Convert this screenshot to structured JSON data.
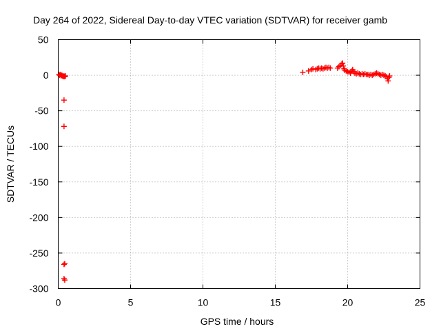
{
  "chart_data": {
    "type": "scatter",
    "title": "Day 264 of 2022, Sidereal Day-to-day VTEC variation (SDTVAR) for receiver gamb",
    "xlabel": "GPS time / hours",
    "ylabel": "SDTVAR / TECUs",
    "xlim": [
      0,
      25
    ],
    "ylim": [
      -300,
      50
    ],
    "x_ticks": [
      0,
      5,
      10,
      15,
      20,
      25
    ],
    "x_tick_labels": [
      "0",
      "5",
      "10",
      "15",
      "20",
      "25"
    ],
    "y_ticks": [
      50,
      0,
      -50,
      -100,
      -150,
      -200,
      -250,
      -300
    ],
    "y_tick_labels": [
      "50",
      "0",
      "-50",
      "-100",
      "-150",
      "-200",
      "-250",
      "-300"
    ],
    "grid": true,
    "marker": "plus",
    "color": "#ff0000",
    "series": [
      {
        "name": "SDTVAR",
        "points": [
          [
            0.05,
            1
          ],
          [
            0.1,
            0
          ],
          [
            0.15,
            1
          ],
          [
            0.2,
            -1
          ],
          [
            0.25,
            0
          ],
          [
            0.3,
            -1
          ],
          [
            0.35,
            -2
          ],
          [
            0.4,
            -1
          ],
          [
            0.45,
            -2
          ],
          [
            0.5,
            -1
          ],
          [
            0.4,
            -35
          ],
          [
            0.4,
            -72
          ],
          [
            0.4,
            -266
          ],
          [
            0.45,
            -265
          ],
          [
            0.4,
            -286
          ],
          [
            0.45,
            -288
          ],
          [
            16.9,
            4
          ],
          [
            17.3,
            6
          ],
          [
            17.5,
            8
          ],
          [
            17.6,
            9
          ],
          [
            17.8,
            8
          ],
          [
            17.9,
            9
          ],
          [
            18.0,
            10
          ],
          [
            18.1,
            9
          ],
          [
            18.2,
            10
          ],
          [
            18.3,
            9
          ],
          [
            18.4,
            10
          ],
          [
            18.5,
            11
          ],
          [
            18.6,
            10
          ],
          [
            18.7,
            11
          ],
          [
            18.8,
            10
          ],
          [
            19.3,
            10
          ],
          [
            19.4,
            12
          ],
          [
            19.5,
            14
          ],
          [
            19.6,
            16
          ],
          [
            19.65,
            17
          ],
          [
            19.7,
            13
          ],
          [
            19.75,
            9
          ],
          [
            19.8,
            7
          ],
          [
            19.9,
            6
          ],
          [
            20.0,
            5
          ],
          [
            20.1,
            4
          ],
          [
            20.2,
            3
          ],
          [
            20.3,
            6
          ],
          [
            20.35,
            8
          ],
          [
            20.4,
            5
          ],
          [
            20.5,
            3
          ],
          [
            20.6,
            2
          ],
          [
            20.7,
            3
          ],
          [
            20.8,
            2
          ],
          [
            20.9,
            1
          ],
          [
            21.0,
            2
          ],
          [
            21.1,
            1
          ],
          [
            21.2,
            2
          ],
          [
            21.3,
            1
          ],
          [
            21.4,
            1
          ],
          [
            21.5,
            0
          ],
          [
            21.6,
            1
          ],
          [
            21.7,
            0
          ],
          [
            21.8,
            1
          ],
          [
            21.9,
            2
          ],
          [
            22.0,
            3
          ],
          [
            22.1,
            2
          ],
          [
            22.2,
            1
          ],
          [
            22.3,
            0
          ],
          [
            22.4,
            1
          ],
          [
            22.5,
            0
          ],
          [
            22.6,
            -1
          ],
          [
            22.7,
            -2
          ],
          [
            22.75,
            -5
          ],
          [
            22.8,
            -8
          ],
          [
            22.85,
            -3
          ],
          [
            22.9,
            -1
          ]
        ]
      }
    ]
  }
}
